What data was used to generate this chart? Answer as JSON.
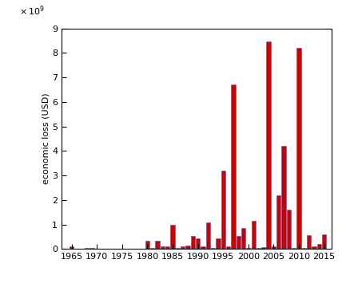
{
  "years": [
    1965,
    1966,
    1967,
    1968,
    1969,
    1970,
    1971,
    1972,
    1973,
    1974,
    1975,
    1976,
    1977,
    1978,
    1979,
    1980,
    1981,
    1982,
    1983,
    1984,
    1985,
    1986,
    1987,
    1988,
    1989,
    1990,
    1991,
    1992,
    1993,
    1994,
    1995,
    1996,
    1997,
    1998,
    1999,
    2000,
    2001,
    2002,
    2003,
    2004,
    2005,
    2006,
    2007,
    2008,
    2009,
    2010,
    2011,
    2012,
    2013,
    2014,
    2015
  ],
  "values": [
    110000000.0,
    5000000.0,
    0,
    30000000.0,
    50000000.0,
    10000000.0,
    0,
    5000000.0,
    0,
    10000000.0,
    0,
    0,
    0,
    0,
    10000000.0,
    350000000.0,
    50000000.0,
    350000000.0,
    100000000.0,
    100000000.0,
    1000000000.0,
    50000000.0,
    100000000.0,
    150000000.0,
    520000000.0,
    450000000.0,
    100000000.0,
    1100000000.0,
    30000000.0,
    450000000.0,
    3200000000.0,
    110000000.0,
    6700000000.0,
    520000000.0,
    850000000.0,
    60000000.0,
    1150000000.0,
    50000000.0,
    70000000.0,
    8450000000.0,
    100000000.0,
    2200000000.0,
    4200000000.0,
    1600000000.0,
    50000000.0,
    8200000000.0,
    30000000.0,
    550000000.0,
    110000000.0,
    200000000.0,
    600000000.0
  ],
  "bar_color": "#cc0000",
  "edge_color": "#5555aa",
  "ylabel": "economic loss (USD)",
  "ylim": [
    0,
    9000000000.0
  ],
  "yticks": [
    0,
    1000000000.0,
    2000000000.0,
    3000000000.0,
    4000000000.0,
    5000000000.0,
    6000000000.0,
    7000000000.0,
    8000000000.0,
    9000000000.0
  ],
  "xlim": [
    1963.0,
    2016.5
  ],
  "xticks": [
    1965,
    1970,
    1975,
    1980,
    1985,
    1990,
    1995,
    2000,
    2005,
    2010,
    2015
  ],
  "background_color": "#ffffff"
}
